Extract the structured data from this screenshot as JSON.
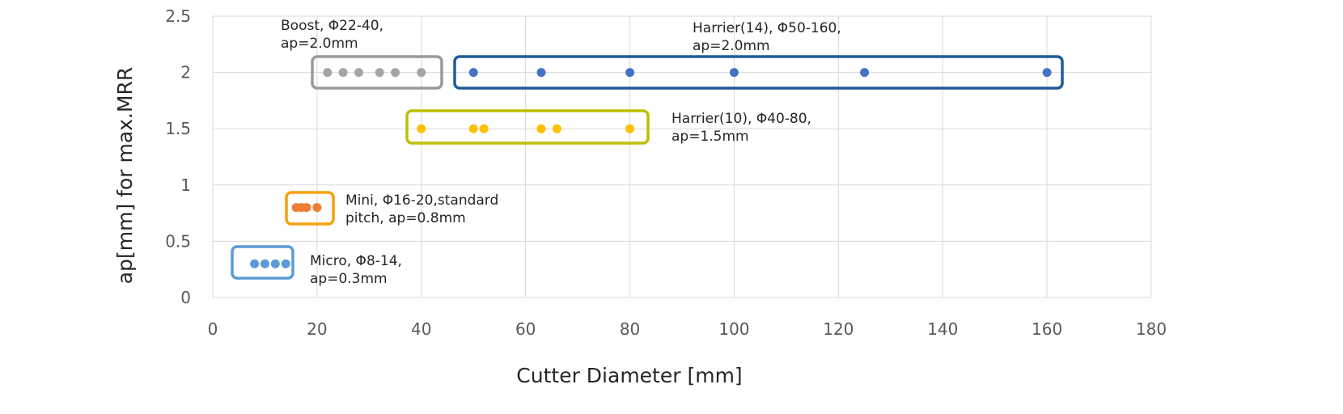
{
  "chart_data": {
    "type": "scatter",
    "x_label": "Cutter Diameter [mm]",
    "y_label": "ap[mm] for max.MRR",
    "xlim": [
      0,
      180
    ],
    "xticks": [
      0,
      20,
      40,
      60,
      80,
      100,
      120,
      140,
      160,
      180
    ],
    "ylim": [
      0,
      2.5
    ],
    "yticks": [
      0,
      0.5,
      1,
      1.5,
      2,
      2.5
    ],
    "grid": true,
    "series": [
      {
        "label": [
          "Micro, Φ8-14,",
          "ap=0.3mm"
        ],
        "color": "#5b9bd5",
        "box_color": "#5b9bd5",
        "x": [
          8,
          10,
          12,
          14
        ],
        "values": [
          0.3,
          0.3,
          0.3,
          0.3
        ]
      },
      {
        "label": [
          "Mini, Φ16-20,standard",
          "pitch, ap=0.8mm"
        ],
        "color": "#ed7d31",
        "box_color": "#f5a10f",
        "x": [
          16,
          17,
          18,
          20
        ],
        "values": [
          0.8,
          0.8,
          0.8,
          0.8
        ]
      },
      {
        "label": [
          "Boost, Φ22-40,",
          "ap=2.0mm"
        ],
        "color": "#a5a5a5",
        "box_color": "#9a9a9a",
        "x": [
          22,
          25,
          28,
          32,
          35,
          40
        ],
        "values": [
          2,
          2,
          2,
          2,
          2,
          2
        ]
      },
      {
        "label": [
          "Harrier(10), Φ40-80,",
          "ap=1.5mm"
        ],
        "color": "#ffc000",
        "box_color": "#bfbf00",
        "x": [
          40,
          50,
          52,
          63,
          66,
          80
        ],
        "values": [
          1.5,
          1.5,
          1.5,
          1.5,
          1.5,
          1.5
        ]
      },
      {
        "label": [
          "Harrier(14), Φ50-160,",
          "ap=2.0mm"
        ],
        "color": "#4472c4",
        "box_color": "#1f5b9c",
        "x": [
          50,
          63,
          80,
          100,
          125,
          160
        ],
        "values": [
          2,
          2,
          2,
          2,
          2,
          2
        ]
      }
    ]
  }
}
